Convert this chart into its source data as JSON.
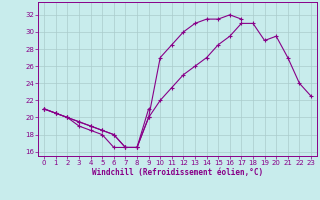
{
  "title": "",
  "xlabel": "Windchill (Refroidissement éolien,°C)",
  "ylabel": "",
  "bg_color": "#c8ecec",
  "line_color": "#880088",
  "grid_color": "#aacccc",
  "axis_color": "#880088",
  "tick_color": "#880088",
  "xlim": [
    -0.5,
    23.5
  ],
  "ylim": [
    15.5,
    33.5
  ],
  "xticks": [
    0,
    1,
    2,
    3,
    4,
    5,
    6,
    7,
    8,
    9,
    10,
    11,
    12,
    13,
    14,
    15,
    16,
    17,
    18,
    19,
    20,
    21,
    22,
    23
  ],
  "yticks": [
    16,
    18,
    20,
    22,
    24,
    26,
    28,
    30,
    32
  ],
  "line1_x": [
    0,
    1,
    2,
    3,
    4,
    5,
    6,
    7,
    8,
    9
  ],
  "line1_y": [
    21,
    20.5,
    20,
    19,
    18.5,
    18,
    16.5,
    16.5,
    16.5,
    21
  ],
  "line2_x": [
    0,
    1,
    2,
    3,
    4,
    5,
    6,
    7,
    8,
    9,
    10,
    11,
    12,
    13,
    14,
    15,
    16,
    17,
    18,
    19,
    20,
    21,
    22,
    23
  ],
  "line2_y": [
    21,
    20.5,
    20,
    19.5,
    19,
    18.5,
    18,
    16.5,
    16.5,
    20,
    22,
    23.5,
    25,
    26,
    27,
    28.5,
    29.5,
    31,
    31,
    29,
    29.5,
    27,
    24,
    22.5
  ],
  "line3_x": [
    0,
    1,
    2,
    3,
    4,
    5,
    6,
    7,
    8,
    9,
    10,
    11,
    12,
    13,
    14,
    15,
    16,
    17,
    18,
    19,
    20,
    21,
    22,
    23
  ],
  "line3_y": [
    21,
    20.5,
    20,
    19.5,
    19,
    18.5,
    18,
    16.5,
    16.5,
    20,
    27,
    28.5,
    30,
    31,
    31.5,
    31.5,
    32,
    31.5,
    null,
    null,
    null,
    null,
    null,
    null
  ],
  "marker": "+"
}
